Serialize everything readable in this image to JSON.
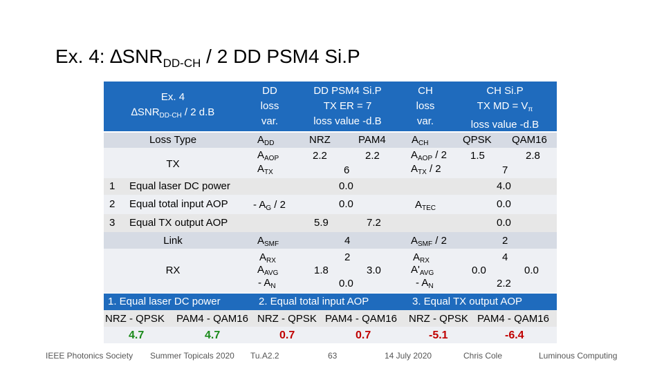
{
  "title": {
    "prefix": "Ex. 4: ∆SNR",
    "sub": "DD-CH",
    "suffix": " / 2   DD PSM4 Si.P"
  },
  "header": {
    "col0_line1": "Ex. 4",
    "col0_line2_prefix": "∆SNR",
    "col0_line2_sub": "DD-CH",
    "col0_line2_suffix": " / 2  d.B",
    "col1": [
      "DD",
      "loss",
      "var."
    ],
    "col2": [
      "DD PSM4 Si.P",
      "TX ER = 7",
      "loss value -d.B"
    ],
    "col3": [
      "CH",
      "loss",
      "var."
    ],
    "col4_line1": "CH Si.P",
    "col4_line2": "TX MD = V",
    "col4_line2_sub": "π",
    "col4_line3": "loss value -d.B"
  },
  "loss_type": {
    "label": "Loss Type",
    "dd_var": "A",
    "dd_var_sub": "DD",
    "nrz": "NRZ",
    "pam4": "PAM4",
    "ch_var": "A",
    "ch_var_sub": "CH",
    "qpsk": "QPSK",
    "qam16": "QAM16"
  },
  "tx": {
    "label": "TX",
    "dd_aop": "A",
    "dd_aop_sub": "AOP",
    "dd_atx": "A",
    "dd_atx_sub": "TX",
    "nrz_val": "2.2",
    "pam4_val": "2.2",
    "mid_val": "6",
    "ch_aop": "A",
    "ch_aop_sub": "AOP",
    "ch_aop_suf": " / 2",
    "ch_atx": "A",
    "ch_atx_sub": "TX",
    "ch_atx_suf": " / 2",
    "qpsk_val": "1.5",
    "qam16_val": "2.8",
    "ch_mid": "7"
  },
  "rows": [
    {
      "num": "1",
      "label": "Equal laser DC power",
      "dd_val": "0.0",
      "ch_val": "4.0"
    },
    {
      "num": "2",
      "label": "Equal total input AOP",
      "dd_var": "- A",
      "dd_var_sub": "G",
      "dd_var_suf": " / 2",
      "dd_val": "0.0",
      "ch_var": "A",
      "ch_var_sub": "TEC",
      "ch_val": "0.0"
    },
    {
      "num": "3",
      "label": "Equal TX output AOP",
      "dd_nrz": "5.9",
      "dd_pam4": "7.2",
      "ch_val": "0.0"
    }
  ],
  "link": {
    "label": "Link",
    "dd_var": "A",
    "dd_var_sub": "SMF",
    "dd_val": "4",
    "ch_var": "A",
    "ch_var_sub": "SMF",
    "ch_var_suf": " / 2",
    "ch_val": "2"
  },
  "rx": {
    "label": "RX",
    "arx": "A",
    "arx_sub": "RX",
    "aavg": "A",
    "aavg_sub": "AVG",
    "an": "- A",
    "an_sub": "N",
    "dd_arx_val": "2",
    "dd_nrz": "1.8",
    "dd_pam4": "3.0",
    "dd_an_val": "0.0",
    "ch_arx": "A",
    "ch_arx_sub": "RX",
    "ch_aavg": "A'",
    "ch_aavg_sub": "AVG",
    "ch_an": "- A",
    "ch_an_sub": "N",
    "ch_arx_val": "4",
    "ch_qpsk": "0.0",
    "ch_qam16": "0.0",
    "ch_an_val": "2.2"
  },
  "cases": [
    "1. Equal laser DC power",
    "2. Equal total input AOP",
    "3. Equal TX output AOP"
  ],
  "mods": [
    "NRZ - QPSK",
    "PAM4 - QAM16",
    "NRZ - QPSK",
    "PAM4 - QAM16",
    "NRZ - QPSK",
    "PAM4 - QAM16"
  ],
  "results": [
    "4.7",
    "4.7",
    "0.7",
    "0.7",
    "-5.1",
    "-6.4"
  ],
  "colors": {
    "blue": "#1f6bbd",
    "green": "#1a8a1a",
    "red": "#c00000"
  },
  "footer": [
    "IEEE Photonics Society",
    "Summer Topicals 2020",
    "Tu.A2.2",
    "63",
    "14 July 2020",
    "Chris Cole",
    "Luminous Computing"
  ]
}
